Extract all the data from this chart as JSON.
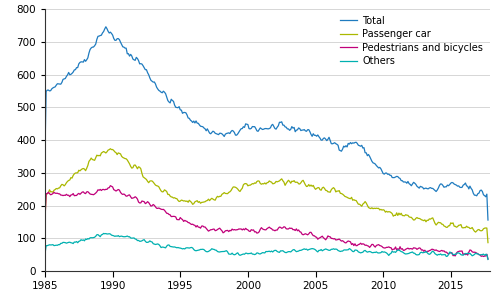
{
  "colors": {
    "Total": "#1f7bbf",
    "Passenger car": "#aab800",
    "Pedestrians and bicycles": "#c0007a",
    "Others": "#00b0b0"
  },
  "legend_labels": [
    "Total",
    "Passenger car",
    "Pedestrians and bicycles",
    "Others"
  ],
  "xlim": [
    1985.0,
    2017.9
  ],
  "ylim": [
    0,
    800
  ],
  "yticks": [
    0,
    100,
    200,
    300,
    400,
    500,
    600,
    700,
    800
  ],
  "xticks": [
    1985,
    1990,
    1995,
    2000,
    2005,
    2010,
    2015
  ],
  "grid_color": "#d0d0d0"
}
